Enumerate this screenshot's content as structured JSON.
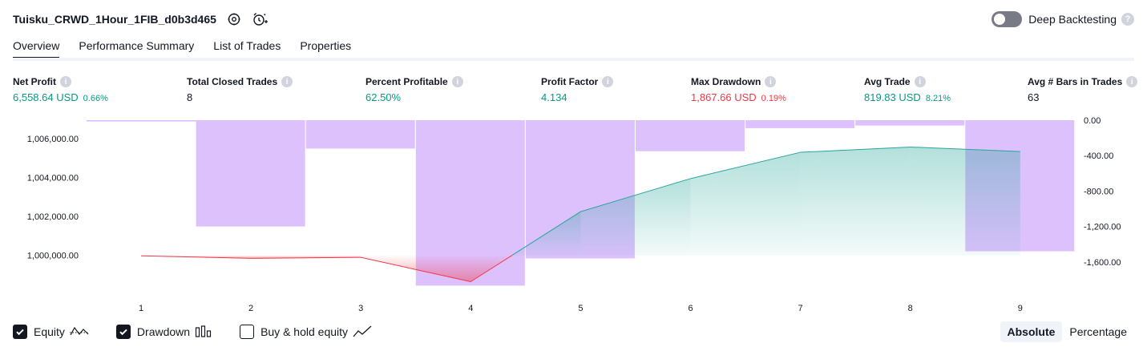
{
  "header": {
    "strategy_name": "Tuisku_CRWD_1Hour_1FIB_d0b3d465",
    "settings_icon": "gear-icon",
    "alert_icon": "alarm-clock-add-icon"
  },
  "deep_backtesting": {
    "label": "Deep Backtesting",
    "enabled": false,
    "help": "?"
  },
  "tabs": [
    {
      "label": "Overview",
      "active": true
    },
    {
      "label": "Performance Summary",
      "active": false
    },
    {
      "label": "List of Trades",
      "active": false
    },
    {
      "label": "Properties",
      "active": false
    }
  ],
  "metrics": {
    "net_profit": {
      "label": "Net Profit",
      "value": "6,558.64 USD",
      "pct": "0.66%"
    },
    "total_closed_trades": {
      "label": "Total Closed Trades",
      "value": "8"
    },
    "percent_profitable": {
      "label": "Percent Profitable",
      "value": "62.50%"
    },
    "profit_factor": {
      "label": "Profit Factor",
      "value": "4.134"
    },
    "max_drawdown": {
      "label": "Max Drawdown",
      "value": "1,867.66 USD",
      "pct": "0.19%"
    },
    "avg_trade": {
      "label": "Avg Trade",
      "value": "819.83 USD",
      "pct": "8.21%"
    },
    "avg_bars": {
      "label": "Avg # Bars in Trades",
      "value": "63"
    }
  },
  "info_glyph": "i",
  "chart_data": {
    "type": "line",
    "x": [
      1,
      2,
      3,
      4,
      5,
      6,
      7,
      8,
      9
    ],
    "x_tick_labels": [
      "1",
      "2",
      "3",
      "4",
      "5",
      "6",
      "7",
      "8",
      "9"
    ],
    "series": [
      {
        "values": [
          999980,
          999850,
          999900,
          998650,
          1002250,
          1003950,
          1005300,
          1005570,
          1005340
        ]
      }
    ],
    "drawdown": {
      "values": [
        0,
        -1200,
        -320,
        -1867.66,
        -1560,
        -350,
        -90,
        -60,
        -1480
      ]
    },
    "left_axis": {
      "ticks": [
        "1,006,000.00",
        "1,004,000.00",
        "1,002,000.00",
        "1,000,000.00"
      ],
      "range": [
        998300,
        1006950
      ]
    },
    "right_axis": {
      "ticks": [
        "0.00",
        "-400.00",
        "-800.00",
        "-1,200.00",
        "-1,600.00"
      ],
      "range": [
        -1900,
        0
      ]
    },
    "colors": {
      "equity_up": "#26a69a",
      "equity_down": "#f23645",
      "drawdown": "#c89bfb",
      "equity_fill_up": "#b2ebe0",
      "equity_fill_down": "#f5a3b0"
    }
  },
  "legend": {
    "equity": {
      "label": "Equity",
      "checked": true
    },
    "drawdown": {
      "label": "Drawdown",
      "checked": true
    },
    "buy_hold": {
      "label": "Buy & hold equity",
      "checked": false
    }
  },
  "scale": {
    "absolute": "Absolute",
    "percentage": "Percentage",
    "selected": "absolute"
  }
}
